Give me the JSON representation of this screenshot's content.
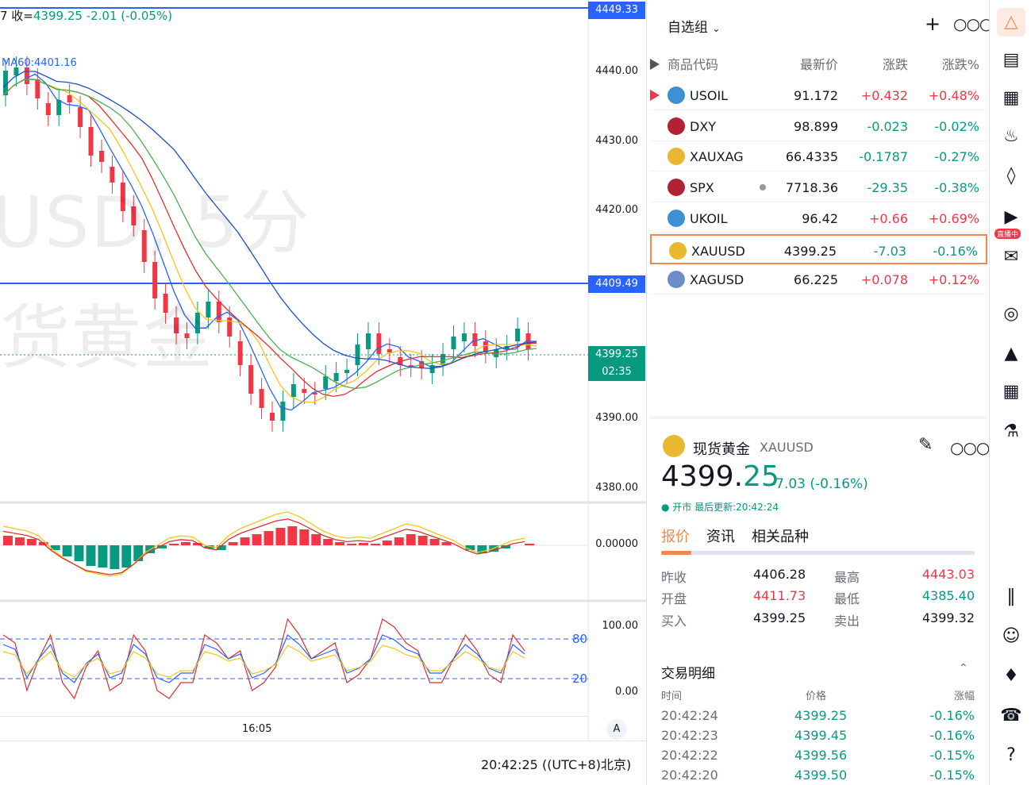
{
  "chart": {
    "ohlc_prefix": "7 收=",
    "ohlc_close": "4399.25",
    "ohlc_change": "-2.01 (-0.05%)",
    "ma_label": "MA60:4401.16",
    "watermark_line1": "USD, 5分",
    "watermark_line2": "货黄金",
    "price_axis": [
      "4440.00",
      "4430.00",
      "4420.00",
      "4390.00",
      "4380.00"
    ],
    "tag_top": "4449.33",
    "tag_mid": "4409.49",
    "current_price": "4399.25",
    "countdown": "02:35",
    "macd_zero": "0.00000",
    "stoch_100": "100.00",
    "stoch_0": "0.00",
    "stoch_80": "80",
    "stoch_20": "20",
    "time_tick": "16:05",
    "auto_label": "A",
    "clock": "20:42:25 ((UTC+8)北京)"
  },
  "watchlist": {
    "title": "自选组",
    "add_icon": "plus-icon",
    "more_icon": "more-icon",
    "columns": {
      "code": "商品代码",
      "last": "最新价",
      "chg": "涨跌",
      "pct": "涨跌%"
    },
    "rows": [
      {
        "sym": "USOIL",
        "last": "91.172",
        "chg": "+0.432",
        "pct": "+0.48%",
        "dir": "up",
        "icon_color": "#3d8fd6"
      },
      {
        "sym": "DXY",
        "last": "98.899",
        "chg": "-0.023",
        "pct": "-0.02%",
        "dir": "down",
        "icon_color": "#b22234"
      },
      {
        "sym": "XAUXAG",
        "last": "66.4335",
        "chg": "-0.1787",
        "pct": "-0.27%",
        "dir": "down",
        "icon_color": "#e8b830"
      },
      {
        "sym": "SPX",
        "last": "7718.36",
        "chg": "-29.35",
        "pct": "-0.38%",
        "dir": "down",
        "icon_color": "#b22234"
      },
      {
        "sym": "UKOIL",
        "last": "96.42",
        "chg": "+0.66",
        "pct": "+0.69%",
        "dir": "up",
        "icon_color": "#3d8fd6"
      },
      {
        "sym": "XAUUSD",
        "last": "4399.25",
        "chg": "-7.03",
        "pct": "-0.16%",
        "dir": "down",
        "icon_color": "#e8b830"
      },
      {
        "sym": "XAGUSD",
        "last": "66.225",
        "chg": "+0.078",
        "pct": "+0.12%",
        "dir": "up",
        "icon_color": "#6b8ec9"
      }
    ]
  },
  "detail": {
    "name": "现货黄金",
    "code": "XAUUSD",
    "price_int": "4399.",
    "price_dec": "25",
    "change": "-7.03 (-0.16%)",
    "status": "● 开市 最后更新:20:42:24",
    "tabs": [
      "报价",
      "资讯",
      "相关品种"
    ],
    "quotes": [
      {
        "l1": "昨收",
        "v1": "4406.28",
        "l2": "最高",
        "v2": "4443.03"
      },
      {
        "l1": "开盘",
        "v1": "4411.73",
        "l2": "最低",
        "v2": "4385.40"
      },
      {
        "l1": "买入",
        "v1": "4399.25",
        "l2": "卖出",
        "v2": "4399.32"
      }
    ],
    "trades_title": "交易明细",
    "trade_cols": {
      "time": "时间",
      "price": "价格",
      "pct": "涨幅"
    },
    "trades": [
      {
        "time": "20:42:24",
        "price": "4399.25",
        "pct": "-0.16%"
      },
      {
        "time": "20:42:23",
        "price": "4399.45",
        "pct": "-0.16%"
      },
      {
        "time": "20:42:22",
        "price": "4399.56",
        "pct": "-0.15%"
      },
      {
        "time": "20:42:20",
        "price": "4399.50",
        "pct": "-0.15%"
      }
    ]
  },
  "toolbar": {
    "icons": [
      "watchlist-icon",
      "news-icon",
      "calendar-icon",
      "alert-icon",
      "layers-icon",
      "live-icon",
      "chat-icon",
      "target-icon",
      "education-icon",
      "table-icon",
      "tree-icon",
      "dom-icon",
      "robot-icon",
      "handshake-icon",
      "support-icon",
      "help-icon"
    ],
    "live_badge": "直播中"
  },
  "colors": {
    "up": "#f23645",
    "down": "#089981",
    "accent": "#f2874d",
    "blue": "#2962ff"
  }
}
